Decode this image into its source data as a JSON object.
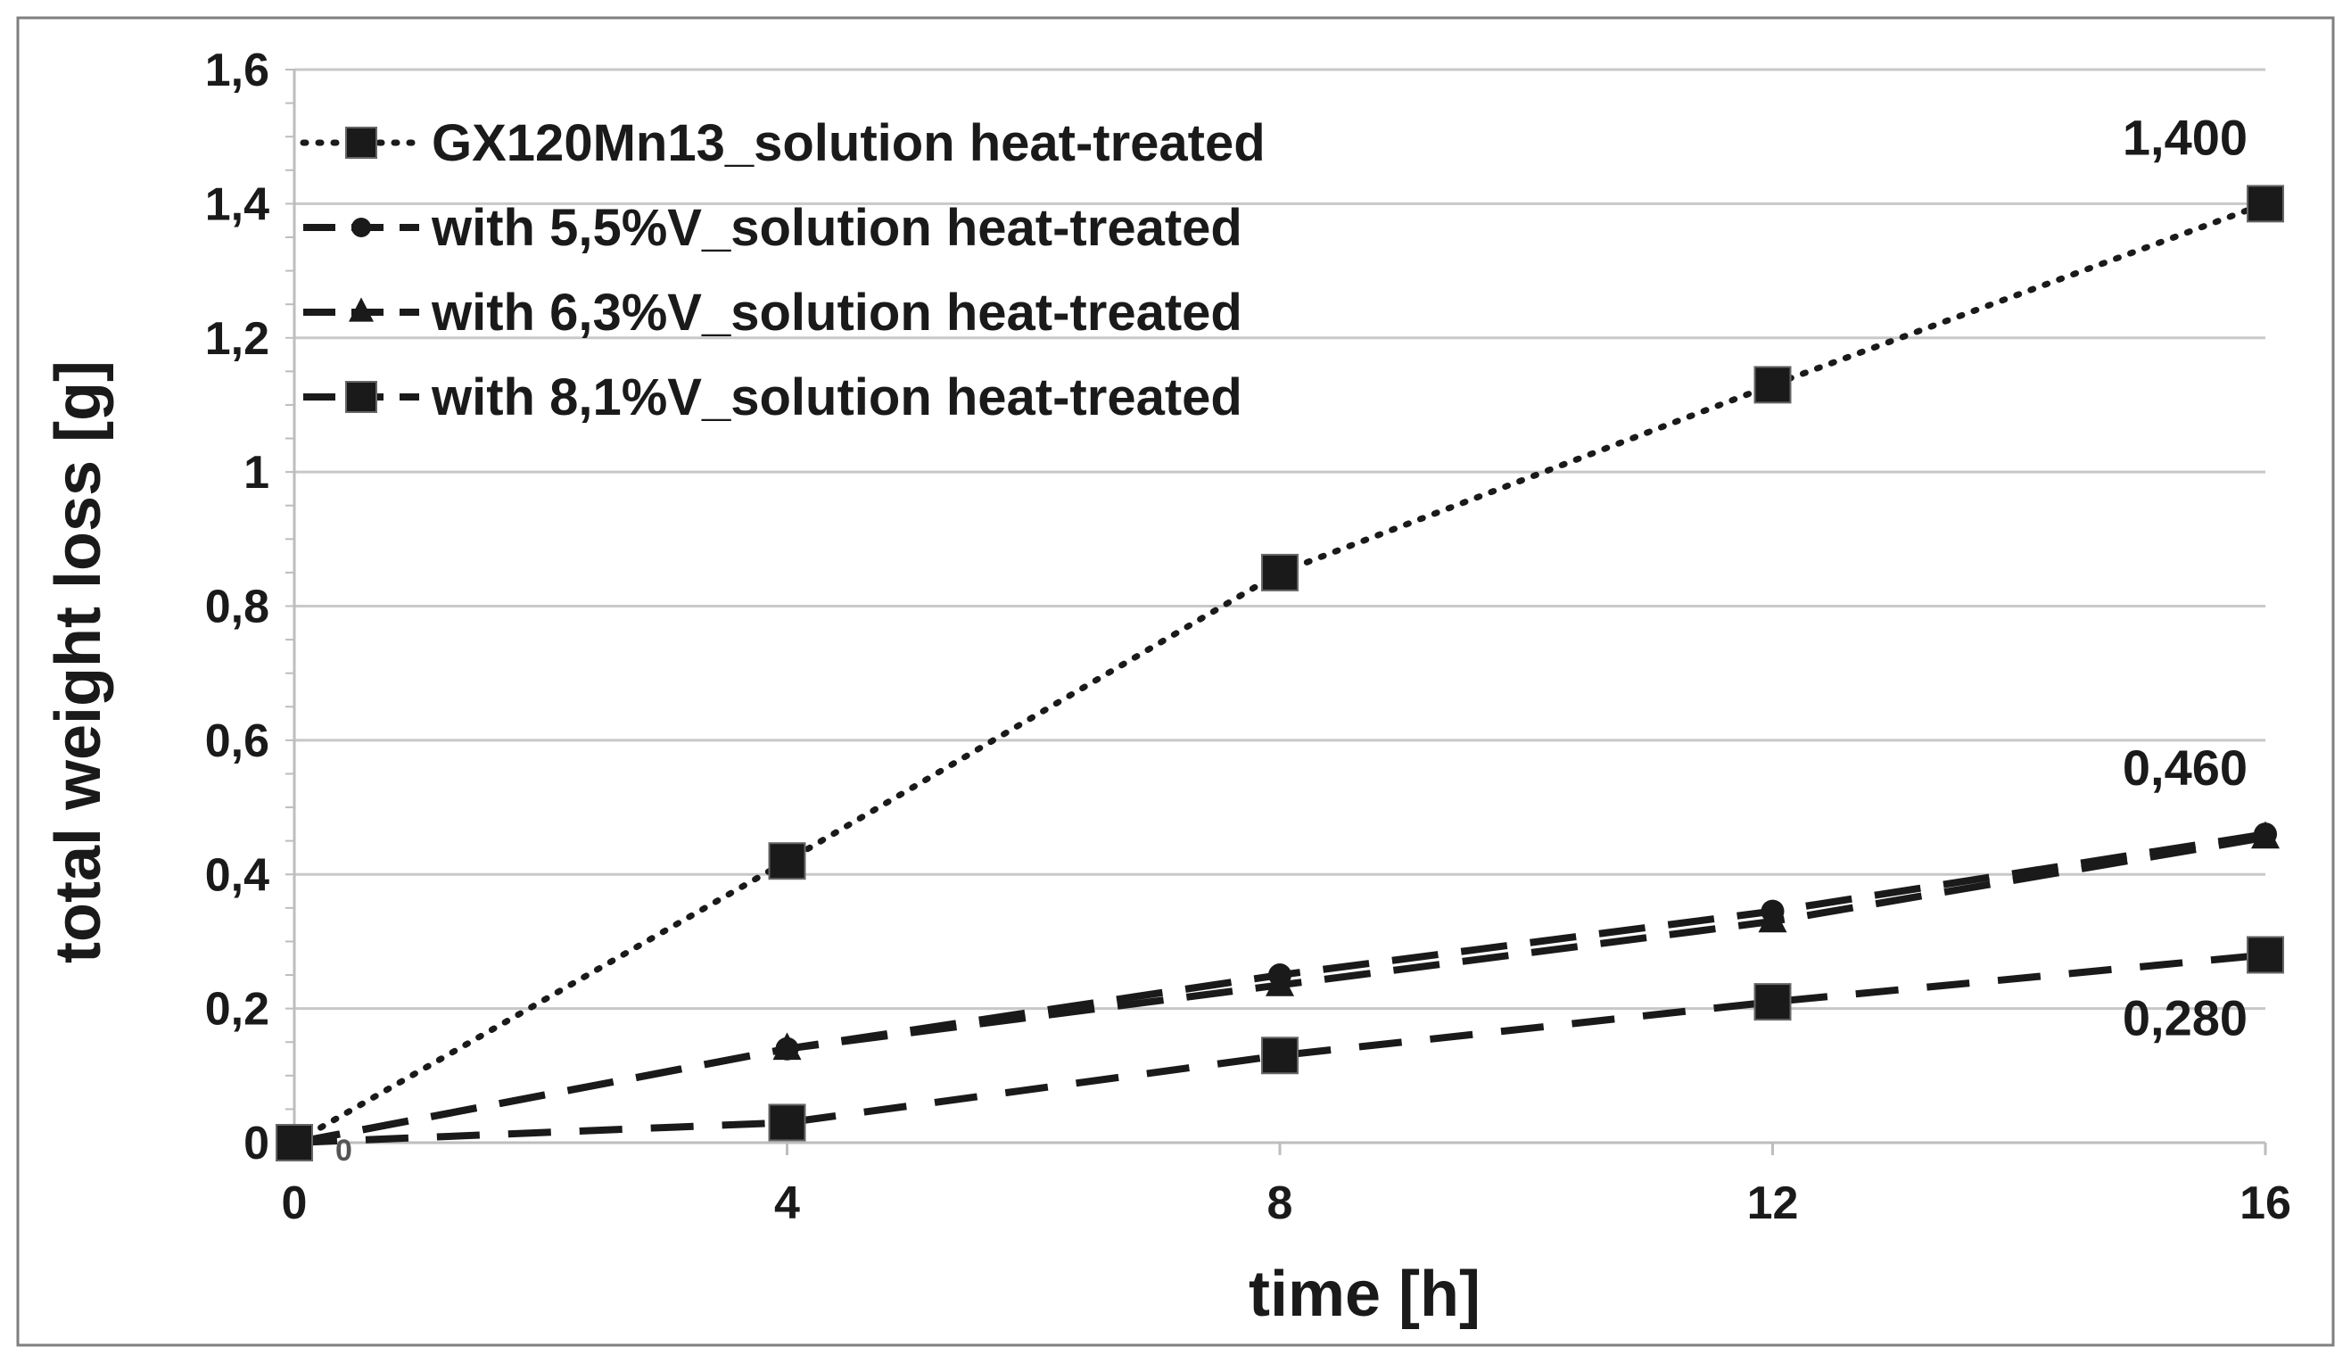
{
  "chart_data": {
    "type": "line",
    "title": "",
    "xlabel": "time [h]",
    "ylabel": "total weight loss [g]",
    "xlim": [
      0,
      16
    ],
    "ylim": [
      0,
      1.6
    ],
    "x": [
      0,
      4,
      8,
      12,
      16
    ],
    "x_ticks": [
      0,
      4,
      8,
      12,
      16
    ],
    "x_tick_labels": [
      "0",
      "4",
      "8",
      "12",
      "16"
    ],
    "y_ticks": [
      0,
      0.2,
      0.4,
      0.6,
      0.8,
      1,
      1.2,
      1.4,
      1.6
    ],
    "y_tick_labels": [
      "0",
      "0,2",
      "0,4",
      "0,6",
      "0,8",
      "1",
      "1,2",
      "1,4",
      "1,6"
    ],
    "grid": true,
    "legend_position": "top-left",
    "series": [
      {
        "name": "GX120Mn13_solution heat-treated",
        "marker": "square",
        "line_style": "dotted",
        "values": [
          0,
          0.42,
          0.85,
          1.13,
          1.4
        ]
      },
      {
        "name": "with 5,5%V_solution heat-treated",
        "marker": "circle",
        "line_style": "long-dash",
        "values": [
          0,
          0.14,
          0.25,
          0.345,
          0.46
        ]
      },
      {
        "name": "with 6,3%V_solution heat-treated",
        "marker": "triangle",
        "line_style": "long-dash",
        "values": [
          0,
          0.14,
          0.235,
          0.33,
          0.455
        ]
      },
      {
        "name": "with 8,1%V_solution heat-treated",
        "marker": "square",
        "line_style": "dash",
        "values": [
          0,
          0.03,
          0.13,
          0.21,
          0.28
        ]
      }
    ],
    "annotations": [
      {
        "text": "1,400",
        "x": 16,
        "y": 1.4,
        "anchor": "above-left"
      },
      {
        "text": "0,460",
        "x": 16,
        "y": 0.46,
        "anchor": "above-left"
      },
      {
        "text": "0,280",
        "x": 16,
        "y": 0.28,
        "anchor": "below-left"
      },
      {
        "text": "0",
        "x": 0,
        "y": 0,
        "anchor": "right-small"
      }
    ],
    "colors": {
      "line": "#1a1a1a",
      "grid": "#c8c8c8",
      "axis": "#bdbdbd",
      "frame": "#7f7f7f",
      "background": "#ffffff"
    }
  }
}
